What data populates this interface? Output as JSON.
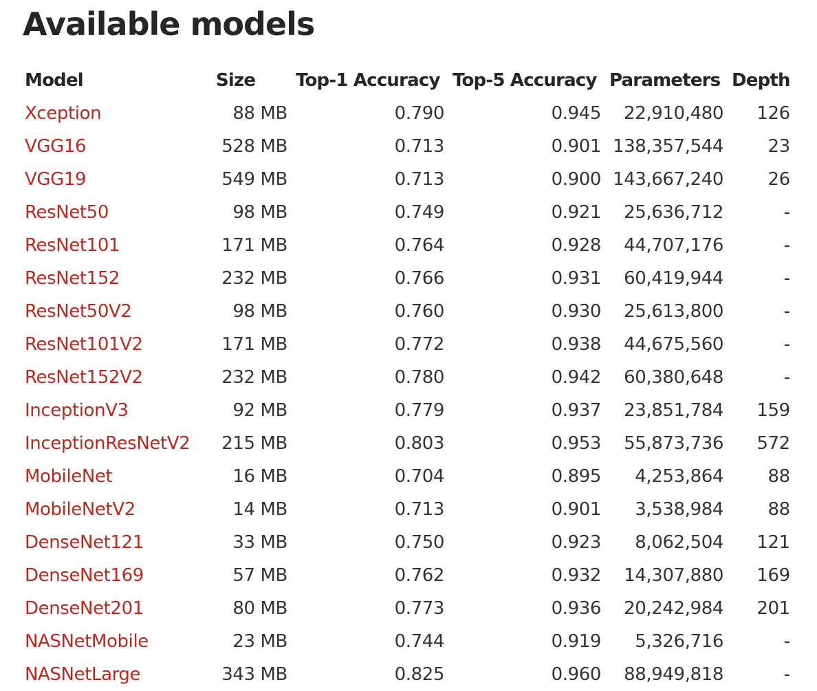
{
  "page": {
    "title": "Available models"
  },
  "table": {
    "headers": {
      "model": "Model",
      "size": "Size",
      "top1": "Top-1 Accuracy",
      "top5": "Top-5 Accuracy",
      "parameters": "Parameters",
      "depth": "Depth"
    },
    "rows": [
      {
        "model": "Xception",
        "size": "88 MB",
        "top1": "0.790",
        "top5": "0.945",
        "parameters": "22,910,480",
        "depth": "126"
      },
      {
        "model": "VGG16",
        "size": "528 MB",
        "top1": "0.713",
        "top5": "0.901",
        "parameters": "138,357,544",
        "depth": "23"
      },
      {
        "model": "VGG19",
        "size": "549 MB",
        "top1": "0.713",
        "top5": "0.900",
        "parameters": "143,667,240",
        "depth": "26"
      },
      {
        "model": "ResNet50",
        "size": "98 MB",
        "top1": "0.749",
        "top5": "0.921",
        "parameters": "25,636,712",
        "depth": "-"
      },
      {
        "model": "ResNet101",
        "size": "171 MB",
        "top1": "0.764",
        "top5": "0.928",
        "parameters": "44,707,176",
        "depth": "-"
      },
      {
        "model": "ResNet152",
        "size": "232 MB",
        "top1": "0.766",
        "top5": "0.931",
        "parameters": "60,419,944",
        "depth": "-"
      },
      {
        "model": "ResNet50V2",
        "size": "98 MB",
        "top1": "0.760",
        "top5": "0.930",
        "parameters": "25,613,800",
        "depth": "-"
      },
      {
        "model": "ResNet101V2",
        "size": "171 MB",
        "top1": "0.772",
        "top5": "0.938",
        "parameters": "44,675,560",
        "depth": "-"
      },
      {
        "model": "ResNet152V2",
        "size": "232 MB",
        "top1": "0.780",
        "top5": "0.942",
        "parameters": "60,380,648",
        "depth": "-"
      },
      {
        "model": "InceptionV3",
        "size": "92 MB",
        "top1": "0.779",
        "top5": "0.937",
        "parameters": "23,851,784",
        "depth": "159"
      },
      {
        "model": "InceptionResNetV2",
        "size": "215 MB",
        "top1": "0.803",
        "top5": "0.953",
        "parameters": "55,873,736",
        "depth": "572"
      },
      {
        "model": "MobileNet",
        "size": "16 MB",
        "top1": "0.704",
        "top5": "0.895",
        "parameters": "4,253,864",
        "depth": "88"
      },
      {
        "model": "MobileNetV2",
        "size": "14 MB",
        "top1": "0.713",
        "top5": "0.901",
        "parameters": "3,538,984",
        "depth": "88"
      },
      {
        "model": "DenseNet121",
        "size": "33 MB",
        "top1": "0.750",
        "top5": "0.923",
        "parameters": "8,062,504",
        "depth": "121"
      },
      {
        "model": "DenseNet169",
        "size": "57 MB",
        "top1": "0.762",
        "top5": "0.932",
        "parameters": "14,307,880",
        "depth": "169"
      },
      {
        "model": "DenseNet201",
        "size": "80 MB",
        "top1": "0.773",
        "top5": "0.936",
        "parameters": "20,242,984",
        "depth": "201"
      },
      {
        "model": "NASNetMobile",
        "size": "23 MB",
        "top1": "0.744",
        "top5": "0.919",
        "parameters": "5,326,716",
        "depth": "-"
      },
      {
        "model": "NASNetLarge",
        "size": "343 MB",
        "top1": "0.825",
        "top5": "0.960",
        "parameters": "88,949,818",
        "depth": "-"
      }
    ]
  },
  "colors": {
    "link": "#b72a1f",
    "heading": "#262626",
    "text": "#333333"
  }
}
